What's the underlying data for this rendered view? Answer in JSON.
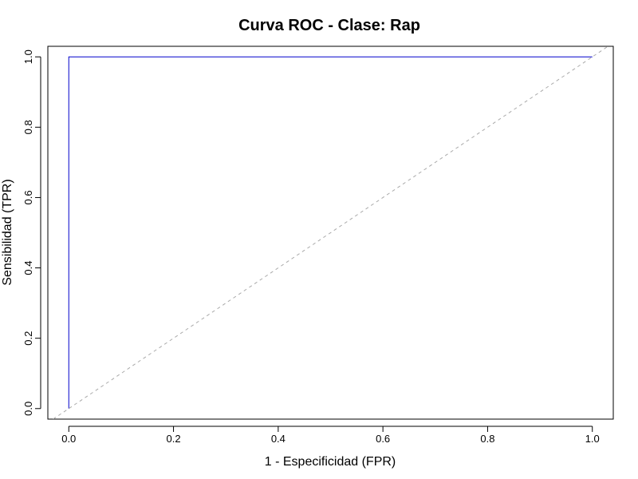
{
  "chart_data": {
    "type": "line",
    "title": "Curva ROC - Clase: Rap",
    "xlabel": "1 - Especificidad (FPR)",
    "ylabel": "Sensibilidad (TPR)",
    "xlim": [
      -0.04,
      1.04
    ],
    "ylim": [
      -0.03,
      1.03
    ],
    "x_ticks": [
      0.0,
      0.2,
      0.4,
      0.6,
      0.8,
      1.0
    ],
    "x_tick_labels": [
      "0.0",
      "0.2",
      "0.4",
      "0.6",
      "0.8",
      "1.0"
    ],
    "y_ticks": [
      0.0,
      0.2,
      0.4,
      0.6,
      0.8,
      1.0
    ],
    "y_tick_labels": [
      "0.0",
      "0.2",
      "0.4",
      "0.6",
      "0.8",
      "1.0"
    ],
    "grid": false,
    "series": [
      {
        "x": [
          0.0,
          0.0,
          1.0
        ],
        "y": [
          0.0,
          1.0,
          1.0
        ],
        "color": "#0000cc",
        "style": "solid"
      },
      {
        "x": [
          -0.04,
          1.04
        ],
        "y": [
          -0.04,
          1.04
        ],
        "color": "#aaaaaa",
        "style": "dashed"
      }
    ]
  }
}
